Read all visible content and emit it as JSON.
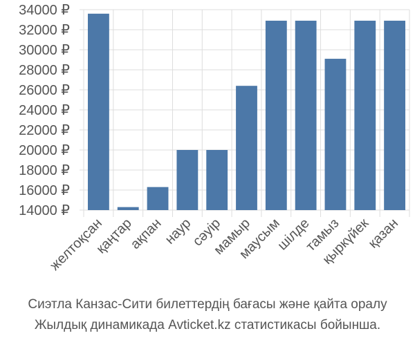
{
  "chart_data": {
    "type": "bar",
    "categories": [
      "желтоқсан",
      "қаңтар",
      "ақпан",
      "наур",
      "сәуір",
      "мамыр",
      "маусым",
      "шілде",
      "тамыз",
      "қыркүйек",
      "қазан"
    ],
    "values": [
      33600,
      14300,
      16300,
      20000,
      20000,
      26400,
      32900,
      32900,
      29100,
      32900,
      32900
    ],
    "color": "#4c78a8",
    "ylim": [
      14000,
      34000
    ],
    "yticks": [
      {
        "value": 14000,
        "label": "14000 ₽"
      },
      {
        "value": 16000,
        "label": "16000 ₽"
      },
      {
        "value": 18000,
        "label": "18000 ₽"
      },
      {
        "value": 20000,
        "label": "20000 ₽"
      },
      {
        "value": 22000,
        "label": "22000 ₽"
      },
      {
        "value": 24000,
        "label": "24000 ₽"
      },
      {
        "value": 26000,
        "label": "26000 ₽"
      },
      {
        "value": 28000,
        "label": "28000 ₽"
      },
      {
        "value": 30000,
        "label": "30000 ₽"
      },
      {
        "value": 32000,
        "label": "32000 ₽"
      },
      {
        "value": 34000,
        "label": "34000 ₽"
      }
    ],
    "grid": true,
    "caption": [
      "Сиэтла Канзас-Сити билеттердің бағасы және қайта оралу",
      "Жылдық динамикада Avticket.kz статистикасы бойынша."
    ]
  }
}
